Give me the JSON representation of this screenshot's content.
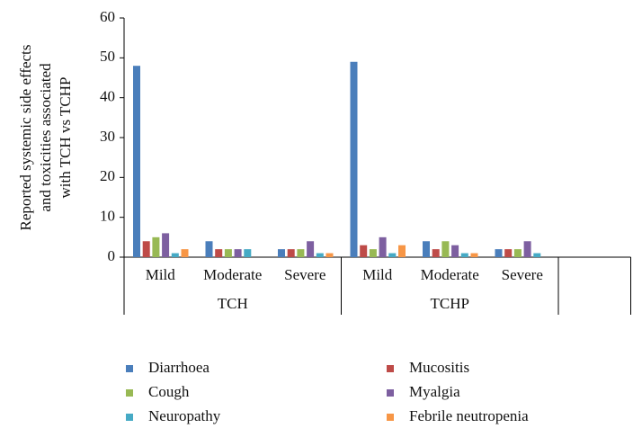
{
  "chart_data": {
    "type": "bar",
    "ylabel": [
      "Reported systemic side effects",
      "and toxicities associated",
      "with TCH vs TCHP"
    ],
    "categories": [
      "Mild",
      "Moderate",
      "Severe",
      "Mild",
      "Moderate",
      "Severe",
      null
    ],
    "groups": [
      "TCH",
      "TCHP",
      null
    ],
    "series": [
      {
        "name": "Diarrhoea",
        "color": "#4a7ebb",
        "values": [
          48,
          4,
          2,
          49,
          4,
          2,
          null
        ]
      },
      {
        "name": "Mucositis",
        "color": "#be4b48",
        "values": [
          4,
          2,
          2,
          3,
          2,
          2,
          null
        ]
      },
      {
        "name": "Cough",
        "color": "#98b954",
        "values": [
          5,
          2,
          2,
          2,
          4,
          2,
          null
        ]
      },
      {
        "name": "Myalgia",
        "color": "#7d5fa0",
        "values": [
          6,
          2,
          4,
          5,
          3,
          4,
          null
        ]
      },
      {
        "name": "Neuropathy",
        "color": "#46aac5",
        "values": [
          1,
          2,
          1,
          1,
          1,
          1,
          null
        ]
      },
      {
        "name": "Febrile neutropenia",
        "color": "#f79646",
        "values": [
          2,
          0,
          1,
          3,
          1,
          0,
          null
        ]
      }
    ],
    "ylim": [
      0,
      60
    ],
    "yticks": [
      0,
      10,
      20,
      30,
      40,
      50,
      60
    ],
    "grid": false
  }
}
